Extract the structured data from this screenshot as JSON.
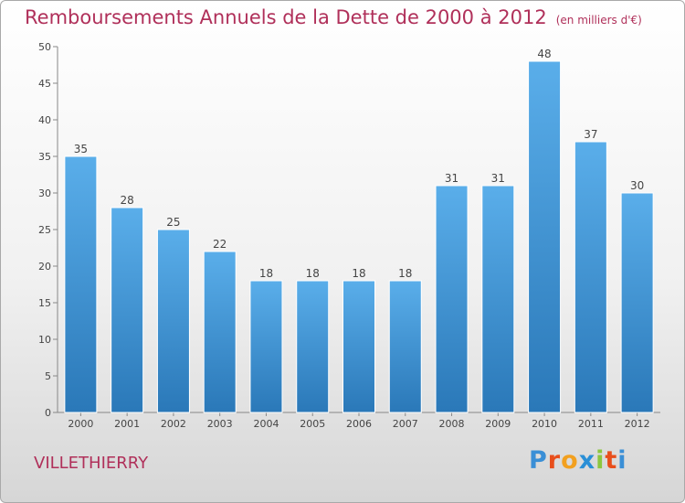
{
  "header": {
    "title": "Remboursements Annuels de la Dette de 2000 à 2012",
    "unit": "(en milliers d'€)"
  },
  "footer": {
    "commune": "VILLETHIERRY",
    "logo": {
      "letters": [
        "P",
        "r",
        "o",
        "x",
        "i",
        "t",
        "i"
      ],
      "colors": [
        "#3a8fd6",
        "#e84e1b",
        "#f2a01f",
        "#2a8fd6",
        "#8cc63e",
        "#e84e1b",
        "#3a8fd6"
      ]
    }
  },
  "chart_data": {
    "type": "bar",
    "title": "Remboursements Annuels de la Dette de 2000 à 2012",
    "subtitle": "(en milliers d'€)",
    "categories": [
      "2000",
      "2001",
      "2002",
      "2003",
      "2004",
      "2005",
      "2006",
      "2007",
      "2008",
      "2009",
      "2010",
      "2011",
      "2012"
    ],
    "values": [
      35,
      28,
      25,
      22,
      18,
      18,
      18,
      18,
      31,
      31,
      48,
      37,
      30
    ],
    "ylim": [
      0,
      50
    ],
    "yticks": [
      0,
      5,
      10,
      15,
      20,
      25,
      30,
      35,
      40,
      45,
      50
    ],
    "grid": false,
    "bar_color_top": "#5aaeea",
    "bar_color_bottom": "#2a78b8"
  }
}
